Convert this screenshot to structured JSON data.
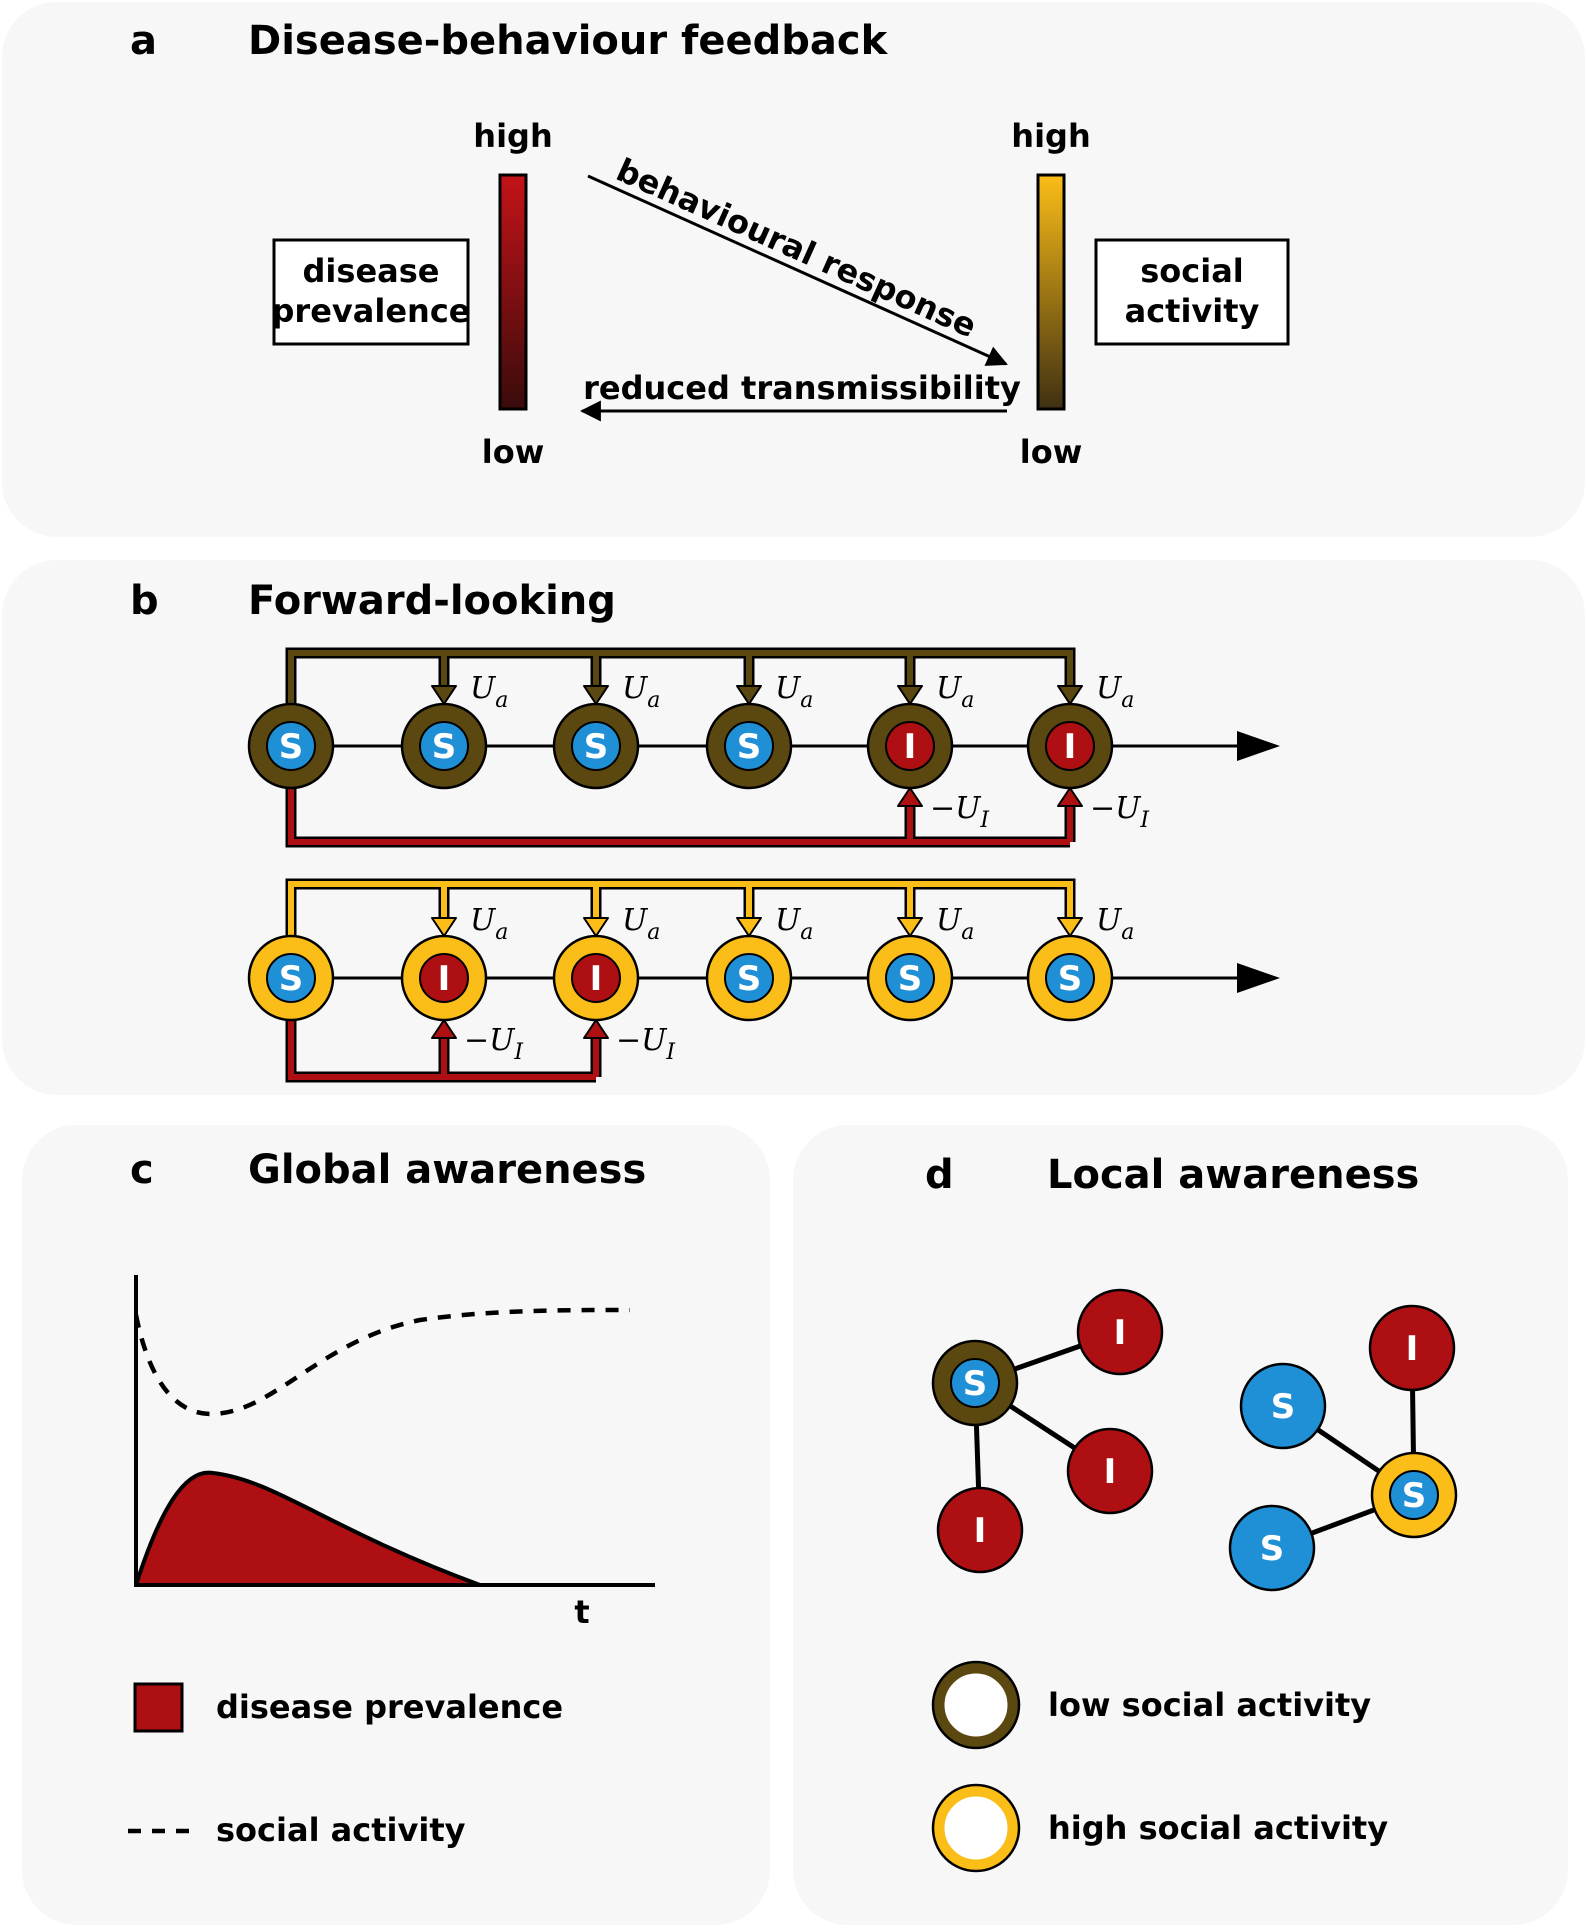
{
  "panels": {
    "a": {
      "letter": "a",
      "title": "Disease-behaviour feedback"
    },
    "b": {
      "letter": "b",
      "title": "Forward-looking"
    },
    "c": {
      "letter": "c",
      "title": "Global awareness"
    },
    "d": {
      "letter": "d",
      "title": "Local awareness"
    }
  },
  "feedback": {
    "prevalence_box": [
      "disease",
      "prevalence"
    ],
    "activity_box": [
      "social",
      "activity"
    ],
    "high": "high",
    "low": "low",
    "behavioural_response": "behavioural response",
    "reduced_transmissibility": "reduced transmissibility"
  },
  "forward": {
    "low_chain": [
      "S",
      "S",
      "S",
      "S",
      "I",
      "I"
    ],
    "high_chain": [
      "S",
      "I",
      "I",
      "S",
      "S",
      "S"
    ],
    "utility_label": "U",
    "utility_sub": "a",
    "penalty_label": "−U",
    "penalty_sub": "I"
  },
  "global": {
    "x_axis_label": "t",
    "legend_prevalence": "disease prevalence",
    "legend_activity": "social activity"
  },
  "local": {
    "legend_low": "low social activity",
    "legend_high": "high social activity"
  },
  "colors": {
    "panel_bg": "#f7f7f7",
    "susceptible": "#1f8fd6",
    "infected": "#ad0f12",
    "low_activity": "#5b4710",
    "high_activity": "#fbbd17",
    "gradient_red_top": "#c41318",
    "gradient_red_bottom": "#3a0b0b",
    "gradient_yellow_top": "#fbbd17",
    "gradient_yellow_bottom": "#3f3012"
  },
  "icons": {
    "arrow": "arrow-icon",
    "node": "node-circle-icon"
  }
}
